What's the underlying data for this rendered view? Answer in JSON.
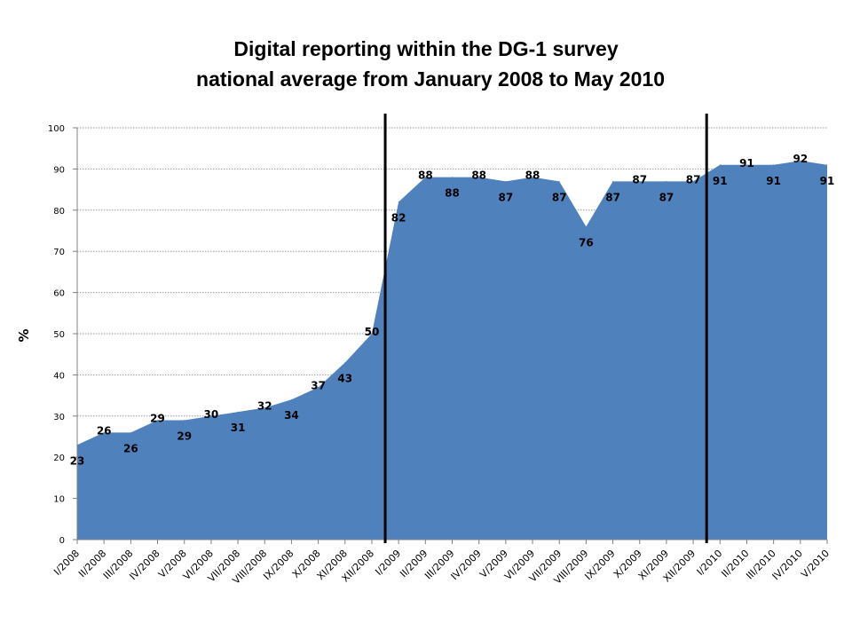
{
  "chart_data": {
    "type": "area",
    "title_line1": "Digital reporting within the DG-1 survey",
    "title_line2": "national average from January 2008 to May 2010",
    "ylabel": "%",
    "xlabel": "",
    "ylim": [
      0,
      100
    ],
    "yticks": [
      0,
      10,
      20,
      30,
      40,
      50,
      60,
      70,
      80,
      90,
      100
    ],
    "grid": true,
    "legend": "none",
    "colors": {
      "area": "#4f81bd",
      "grid": "#9a9a9a",
      "marker_line": "#000000"
    },
    "categories": [
      "I/2008",
      "II/2008",
      "III/2008",
      "IV/2008",
      "V/2008",
      "VI/2008",
      "VII/2008",
      "VIII/2008",
      "IX/2008",
      "X/2008",
      "XI/2008",
      "XII/2008",
      "I/2009",
      "II/2009",
      "III/2009",
      "IV/2009",
      "V/2009",
      "VI/2009",
      "VII/2009",
      "VIII/2009",
      "IX/2009",
      "X/2009",
      "XI/2009",
      "XII/2009",
      "I/2010",
      "II/2010",
      "III/2010",
      "IV/2010",
      "V/2010"
    ],
    "values": [
      23,
      26,
      26,
      29,
      29,
      30,
      31,
      32,
      34,
      37,
      43,
      50,
      82,
      88,
      88,
      88,
      87,
      88,
      87,
      76,
      87,
      87,
      87,
      87,
      91,
      91,
      91,
      92,
      91
    ],
    "vertical_markers_between": [
      [
        "XII/2008",
        "I/2009"
      ],
      [
        "XII/2009",
        "I/2010"
      ]
    ]
  }
}
